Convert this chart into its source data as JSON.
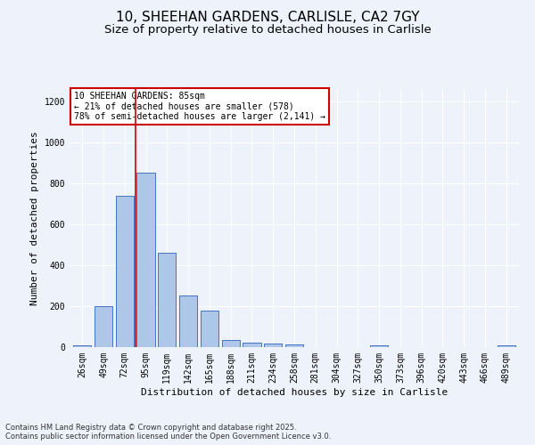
{
  "title_line1": "10, SHEEHAN GARDENS, CARLISLE, CA2 7GY",
  "title_line2": "Size of property relative to detached houses in Carlisle",
  "xlabel": "Distribution of detached houses by size in Carlisle",
  "ylabel": "Number of detached properties",
  "categories": [
    "26sqm",
    "49sqm",
    "72sqm",
    "95sqm",
    "119sqm",
    "142sqm",
    "165sqm",
    "188sqm",
    "211sqm",
    "234sqm",
    "258sqm",
    "281sqm",
    "304sqm",
    "327sqm",
    "350sqm",
    "373sqm",
    "396sqm",
    "420sqm",
    "443sqm",
    "466sqm",
    "489sqm"
  ],
  "bar_values": [
    10,
    200,
    740,
    850,
    460,
    250,
    180,
    35,
    20,
    17,
    12,
    0,
    0,
    0,
    8,
    0,
    0,
    0,
    0,
    0,
    8
  ],
  "bar_color": "#aec6e8",
  "bar_edge_color": "#4472c4",
  "background_color": "#eef2fa",
  "grid_color": "#ffffff",
  "vline_x": 2.5,
  "vline_color": "#cc0000",
  "annotation_title": "10 SHEEHAN GARDENS: 85sqm",
  "annotation_line2": "← 21% of detached houses are smaller (578)",
  "annotation_line3": "78% of semi-detached houses are larger (2,141) →",
  "annotation_box_color": "#cc0000",
  "ylim": [
    0,
    1260
  ],
  "yticks": [
    0,
    200,
    400,
    600,
    800,
    1000,
    1200
  ],
  "footer_line1": "Contains HM Land Registry data © Crown copyright and database right 2025.",
  "footer_line2": "Contains public sector information licensed under the Open Government Licence v3.0.",
  "title_fontsize": 11,
  "subtitle_fontsize": 9.5,
  "label_fontsize": 8,
  "tick_fontsize": 7,
  "footer_fontsize": 6
}
